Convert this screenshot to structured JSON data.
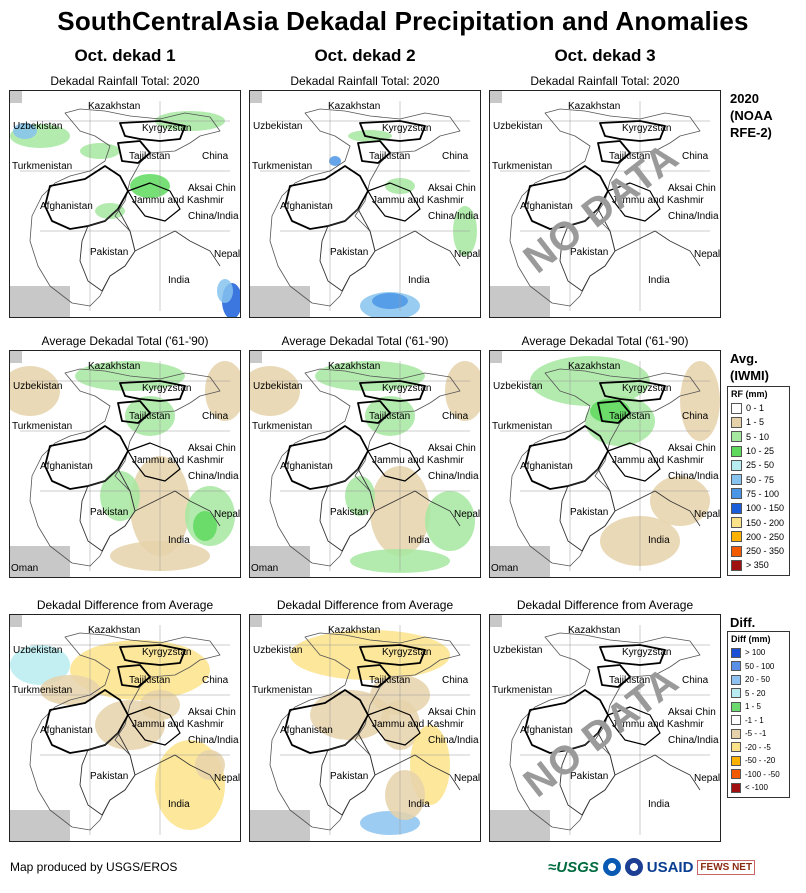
{
  "title": "SouthCentralAsia Dekadal Precipitation and Anomalies",
  "columns": [
    "Oct. dekad 1",
    "Oct. dekad 2",
    "Oct. dekad 3"
  ],
  "row_subtitles": {
    "rainfall": "Dekadal Rainfall Total: 2020",
    "average": "Average Dekadal Total ('61-'90)",
    "difference": "Dekadal Difference from Average"
  },
  "no_data_text": "NO DATA",
  "map_labels": [
    "Kazakhstan",
    "Uzbekistan",
    "Kyrgyzstan",
    "Turkmenistan",
    "Tajikistan",
    "China",
    "Aksai Chin",
    "Jammu and Kashmir",
    "China/India",
    "Afghanistan",
    "Pakistan",
    "Nepal",
    "India",
    "Oman"
  ],
  "row_labels": {
    "rainfall": [
      "2020",
      "(NOAA",
      "RFE-2)"
    ],
    "average": [
      "Avg.",
      "(IWMI)"
    ],
    "difference": [
      "Diff."
    ]
  },
  "rf_legend": {
    "title": "RF (mm)",
    "items": [
      {
        "label": "0 - 1",
        "color": "#ffffff"
      },
      {
        "label": "1 - 5",
        "color": "#e6d2aa"
      },
      {
        "label": "5 - 10",
        "color": "#a6e8a0"
      },
      {
        "label": "10 - 25",
        "color": "#5ed95e"
      },
      {
        "label": "25 - 50",
        "color": "#b7ecf0"
      },
      {
        "label": "50 - 75",
        "color": "#86c3ee"
      },
      {
        "label": "75 - 100",
        "color": "#4b95e6"
      },
      {
        "label": "100 - 150",
        "color": "#1a5ed9"
      },
      {
        "label": "150 - 200",
        "color": "#fce38a"
      },
      {
        "label": "200 - 250",
        "color": "#fdb100"
      },
      {
        "label": "250 - 350",
        "color": "#f25a00"
      },
      {
        "label": "> 350",
        "color": "#a01010"
      }
    ]
  },
  "diff_legend": {
    "title": "Diff (mm)",
    "items": [
      {
        "label": "> 100",
        "color": "#1a4fd6"
      },
      {
        "label": "50 - 100",
        "color": "#5a8fe8"
      },
      {
        "label": "20 - 50",
        "color": "#8cc3f0"
      },
      {
        "label": "5 - 20",
        "color": "#b9ecf0"
      },
      {
        "label": "1 - 5",
        "color": "#6ed96e"
      },
      {
        "label": "-1 - 1",
        "color": "#ffffff"
      },
      {
        "label": "-5 - -1",
        "color": "#e6d2aa"
      },
      {
        "label": "-20 - -5",
        "color": "#fce38a"
      },
      {
        "label": "-50 - -20",
        "color": "#fdb100"
      },
      {
        "label": "-100 - -50",
        "color": "#f25a00"
      },
      {
        "label": "< -100",
        "color": "#a01010"
      }
    ]
  },
  "credit": "Map produced by USGS/EROS",
  "logos": {
    "usgs": "≈USGS",
    "usaid": "USAID",
    "fews": "FEWS NET"
  }
}
